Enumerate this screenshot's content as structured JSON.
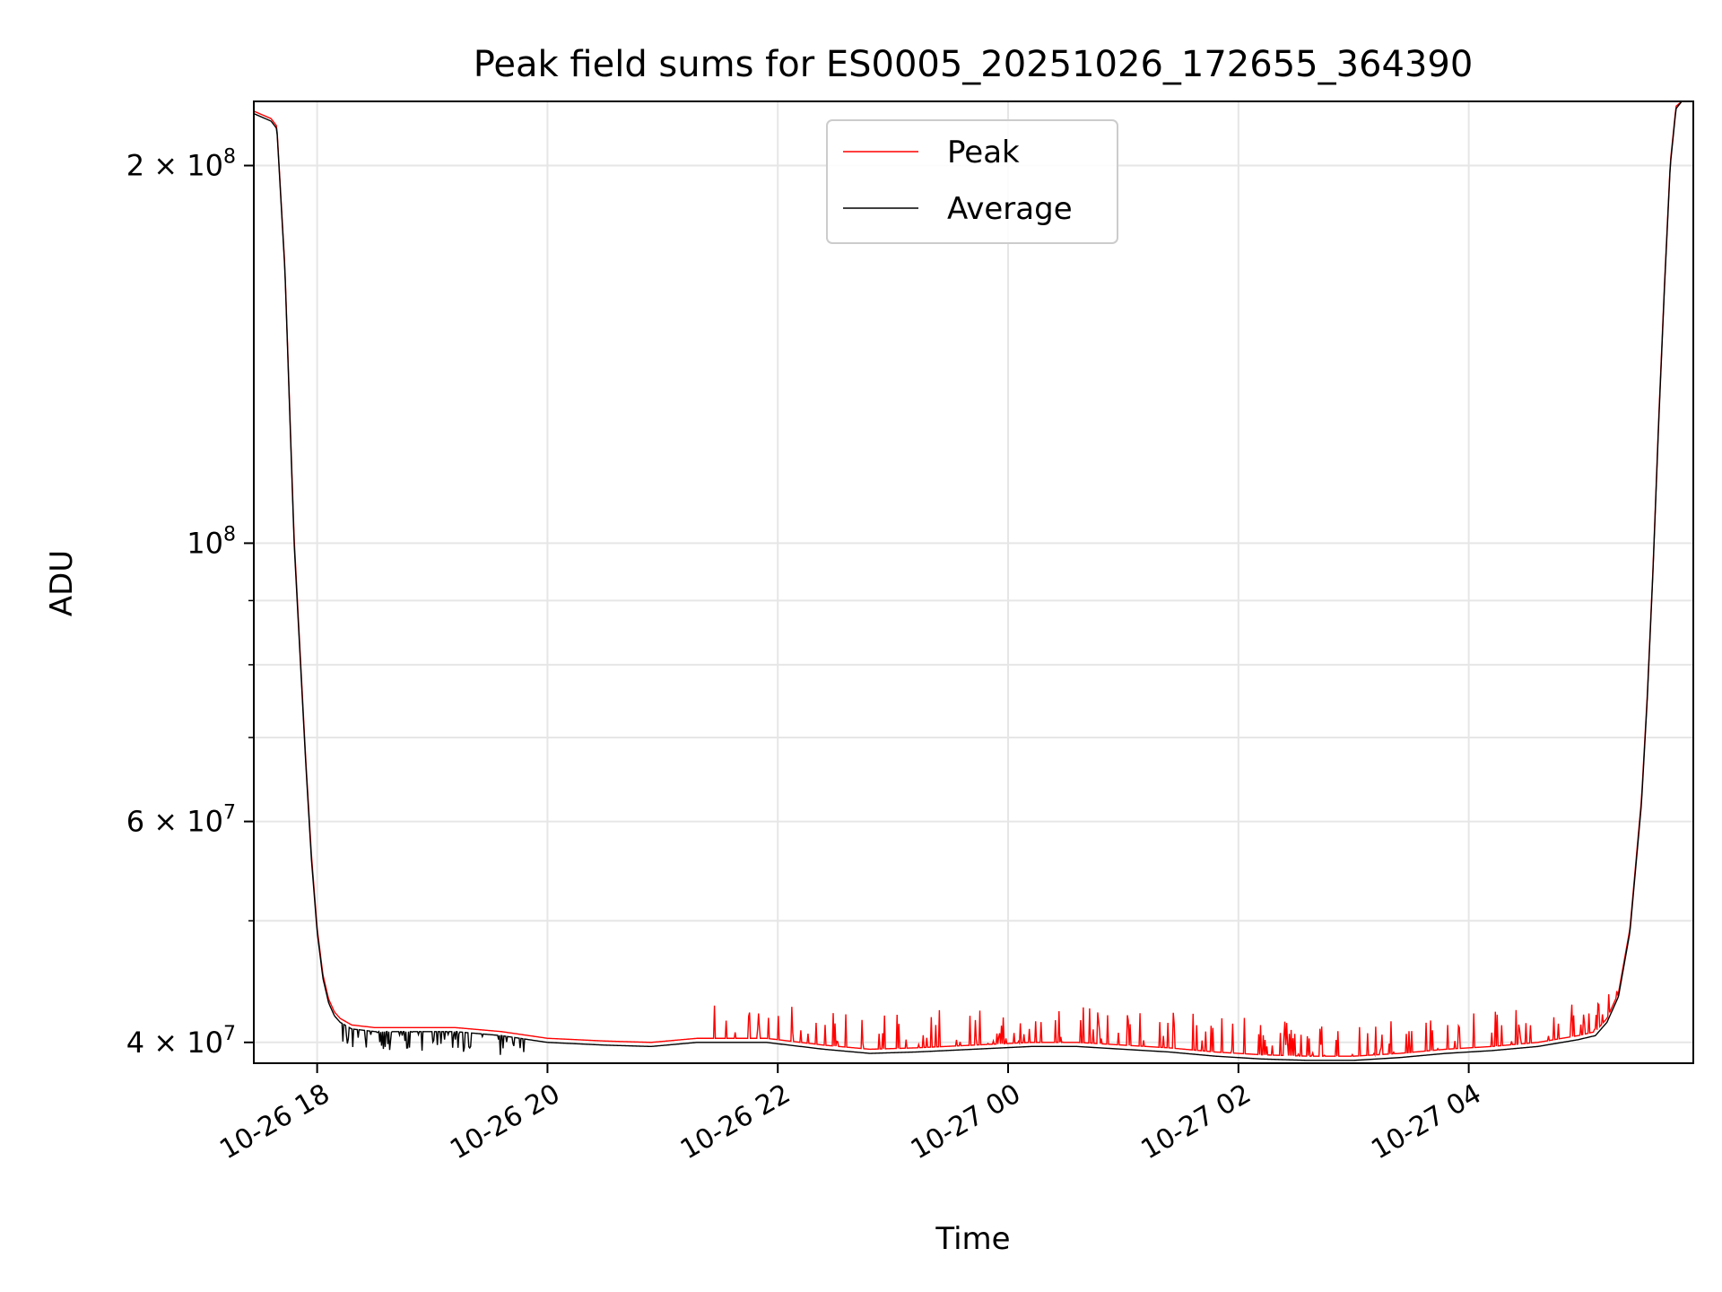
{
  "chart_data": {
    "type": "line",
    "title": "Peak field sums for ES0005_20251026_172655_364390",
    "xlabel": "Time",
    "ylabel": "ADU",
    "yscale": "log",
    "xlim_hours": [
      17.45,
      29.95
    ],
    "ylim": [
      38500000,
      225000000
    ],
    "x_ticks": [
      {
        "hours": 18,
        "label": "10-26 18"
      },
      {
        "hours": 20,
        "label": "10-26 20"
      },
      {
        "hours": 22,
        "label": "10-26 22"
      },
      {
        "hours": 24,
        "label": "10-27 00"
      },
      {
        "hours": 26,
        "label": "10-27 02"
      },
      {
        "hours": 28,
        "label": "10-27 04"
      }
    ],
    "y_major_ticks": [
      {
        "value": 40000000,
        "base": "4",
        "exp": "7"
      },
      {
        "value": 60000000,
        "base": "6",
        "exp": "7"
      },
      {
        "value": 100000000,
        "base": "",
        "exp": "8"
      },
      {
        "value": 200000000,
        "base": "2",
        "exp": "8"
      }
    ],
    "y_minor_ticks": [
      50000000,
      70000000,
      80000000,
      90000000
    ],
    "grid": true,
    "legend": {
      "position": "top-center",
      "entries": [
        {
          "name": "Peak",
          "color": "#ff0000"
        },
        {
          "name": "Average",
          "color": "#000000"
        }
      ]
    },
    "series": [
      {
        "name": "Average",
        "color": "#000000",
        "x_hours": [
          17.45,
          17.6,
          17.65,
          17.72,
          17.8,
          17.9,
          17.95,
          18.0,
          18.05,
          18.1,
          18.15,
          18.2,
          18.3,
          18.5,
          18.8,
          19.2,
          19.6,
          20.0,
          20.5,
          20.9,
          21.3,
          21.9,
          22.4,
          22.8,
          23.2,
          23.7,
          24.2,
          24.6,
          25.0,
          25.4,
          25.8,
          26.2,
          26.6,
          27.0,
          27.4,
          27.8,
          28.2,
          28.6,
          28.95,
          29.1,
          29.2,
          29.3,
          29.4,
          29.5,
          29.55,
          29.6,
          29.65,
          29.7,
          29.75,
          29.8,
          29.85,
          29.95
        ],
        "values": [
          220000000,
          217000000,
          214000000,
          165000000,
          100000000,
          67000000,
          56000000,
          49000000,
          45000000,
          43000000,
          42000000,
          41500000,
          41000000,
          40800000,
          40800000,
          40800000,
          40500000,
          40000000,
          39800000,
          39700000,
          40000000,
          40000000,
          39500000,
          39200000,
          39300000,
          39500000,
          39700000,
          39700000,
          39500000,
          39300000,
          39000000,
          38800000,
          38700000,
          38700000,
          38900000,
          39200000,
          39400000,
          39700000,
          40200000,
          40500000,
          41500000,
          43500000,
          49000000,
          62000000,
          75000000,
          95000000,
          125000000,
          160000000,
          200000000,
          222000000,
          225000000,
          225000000
        ]
      },
      {
        "name": "Peak",
        "color": "#ff0000",
        "x_hours": [
          17.45,
          17.6,
          17.65,
          17.72,
          17.8,
          17.9,
          17.95,
          18.0,
          18.05,
          18.1,
          18.15,
          18.2,
          18.3,
          18.5,
          18.8,
          19.2,
          19.6,
          20.0,
          20.5,
          20.9,
          21.3,
          21.9,
          22.4,
          22.8,
          23.2,
          23.7,
          24.2,
          24.6,
          25.0,
          25.4,
          25.8,
          26.2,
          26.6,
          27.0,
          27.4,
          27.8,
          28.2,
          28.6,
          28.95,
          29.1,
          29.2,
          29.3,
          29.4,
          29.5,
          29.55,
          29.6,
          29.65,
          29.7,
          29.75,
          29.8,
          29.85,
          29.95
        ],
        "values": [
          221000000,
          218000000,
          215000000,
          166000000,
          101000000,
          67500000,
          56500000,
          49300000,
          45300000,
          43300000,
          42300000,
          41800000,
          41300000,
          41100000,
          41100000,
          41100000,
          40800000,
          40300000,
          40100000,
          40000000,
          40300000,
          40300000,
          39800000,
          39500000,
          39600000,
          39800000,
          40000000,
          40000000,
          39800000,
          39600000,
          39300000,
          39100000,
          39000000,
          39000000,
          39200000,
          39500000,
          39700000,
          40000000,
          40500000,
          40800000,
          41800000,
          43800000,
          49300000,
          62500000,
          75500000,
          95500000,
          126000000,
          161000000,
          201000000,
          223000000,
          225000000,
          225000000
        ]
      }
    ]
  }
}
